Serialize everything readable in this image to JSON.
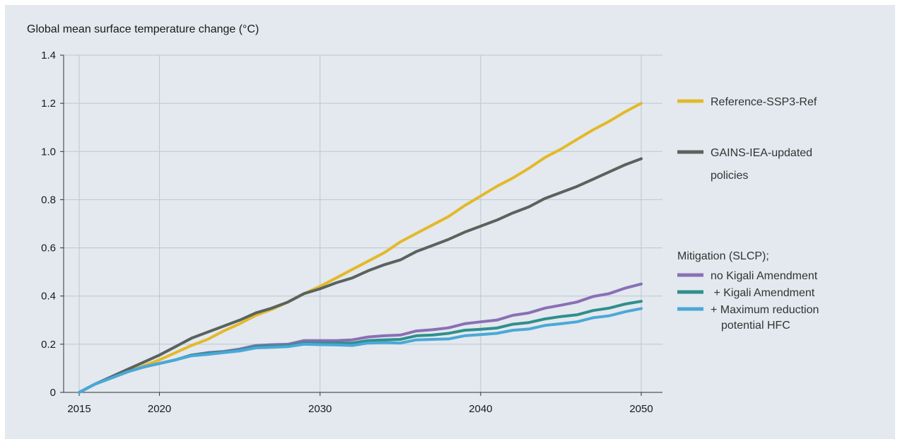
{
  "chart_data": {
    "type": "line",
    "title": "Global mean surface temperature change (°C)",
    "xlabel": "",
    "ylabel": "",
    "xlim": [
      2015,
      2050
    ],
    "ylim": [
      0,
      1.4
    ],
    "x_ticks": [
      2015,
      2020,
      2030,
      2040,
      2050
    ],
    "x_tick_labels": [
      "2015",
      "2020",
      "2030",
      "2040",
      "2050"
    ],
    "y_ticks": [
      0,
      0.2,
      0.4,
      0.6,
      0.8,
      1.0,
      1.2,
      1.4
    ],
    "y_tick_labels": [
      "0",
      "0.2",
      "0.4",
      "0.6",
      "0.8",
      "1.0",
      "1.2",
      "1.4"
    ],
    "grid": true,
    "legend_placement": "right",
    "legend_group_title": "Mitigation (SLCP);",
    "x": [
      2015,
      2016,
      2017,
      2018,
      2019,
      2020,
      2021,
      2022,
      2023,
      2024,
      2025,
      2026,
      2027,
      2028,
      2029,
      2030,
      2031,
      2032,
      2033,
      2034,
      2035,
      2036,
      2037,
      2038,
      2039,
      2040,
      2041,
      2042,
      2043,
      2044,
      2045,
      2046,
      2047,
      2048,
      2049,
      2050
    ],
    "series": [
      {
        "name": "Reference-SSP3-Ref",
        "legend_lines": [
          "Reference-SSP3-Ref"
        ],
        "color": "#e3b92a",
        "values": [
          0.0,
          0.035,
          0.06,
          0.085,
          0.11,
          0.135,
          0.165,
          0.195,
          0.22,
          0.255,
          0.285,
          0.32,
          0.345,
          0.375,
          0.41,
          0.44,
          0.475,
          0.51,
          0.545,
          0.58,
          0.625,
          0.66,
          0.695,
          0.73,
          0.775,
          0.815,
          0.855,
          0.89,
          0.93,
          0.975,
          1.01,
          1.05,
          1.09,
          1.125,
          1.165,
          1.2
        ]
      },
      {
        "name": "GAINS-IEA-updated policies",
        "legend_lines": [
          "GAINS-IEA-updated",
          "policies"
        ],
        "color": "#59635e",
        "values": [
          0.0,
          0.035,
          0.065,
          0.095,
          0.125,
          0.155,
          0.19,
          0.225,
          0.25,
          0.275,
          0.3,
          0.33,
          0.35,
          0.375,
          0.41,
          0.43,
          0.455,
          0.475,
          0.505,
          0.53,
          0.55,
          0.585,
          0.61,
          0.635,
          0.665,
          0.69,
          0.715,
          0.745,
          0.77,
          0.805,
          0.83,
          0.855,
          0.885,
          0.915,
          0.945,
          0.97
        ]
      },
      {
        "name": "no Kigali Amendment",
        "legend_lines": [
          "no Kigali Amendment"
        ],
        "color": "#8a6fb5",
        "values": [
          0.0,
          0.035,
          0.06,
          0.085,
          0.105,
          0.12,
          0.135,
          0.155,
          0.165,
          0.17,
          0.18,
          0.195,
          0.198,
          0.2,
          0.215,
          0.215,
          0.215,
          0.218,
          0.23,
          0.235,
          0.238,
          0.255,
          0.26,
          0.268,
          0.285,
          0.293,
          0.3,
          0.32,
          0.33,
          0.35,
          0.362,
          0.375,
          0.398,
          0.41,
          0.433,
          0.45
        ]
      },
      {
        "name": "+ Kigali Amendment",
        "legend_lines": [
          " + Kigali Amendment"
        ],
        "color": "#2f8f8c",
        "values": [
          0.0,
          0.035,
          0.06,
          0.085,
          0.105,
          0.12,
          0.135,
          0.155,
          0.162,
          0.168,
          0.175,
          0.19,
          0.192,
          0.195,
          0.205,
          0.205,
          0.205,
          0.205,
          0.215,
          0.218,
          0.22,
          0.235,
          0.238,
          0.245,
          0.258,
          0.262,
          0.267,
          0.283,
          0.29,
          0.305,
          0.315,
          0.322,
          0.34,
          0.35,
          0.367,
          0.378
        ]
      },
      {
        "name": "+ Maximum reduction potential HFC",
        "legend_lines": [
          "+ Maximum reduction",
          "potential HFC"
        ],
        "color": "#4aa8d8",
        "values": [
          0.0,
          0.035,
          0.06,
          0.085,
          0.105,
          0.12,
          0.135,
          0.152,
          0.158,
          0.165,
          0.172,
          0.185,
          0.187,
          0.19,
          0.2,
          0.198,
          0.197,
          0.195,
          0.205,
          0.207,
          0.205,
          0.218,
          0.22,
          0.222,
          0.235,
          0.24,
          0.245,
          0.258,
          0.263,
          0.278,
          0.285,
          0.293,
          0.31,
          0.318,
          0.335,
          0.348
        ]
      }
    ]
  }
}
